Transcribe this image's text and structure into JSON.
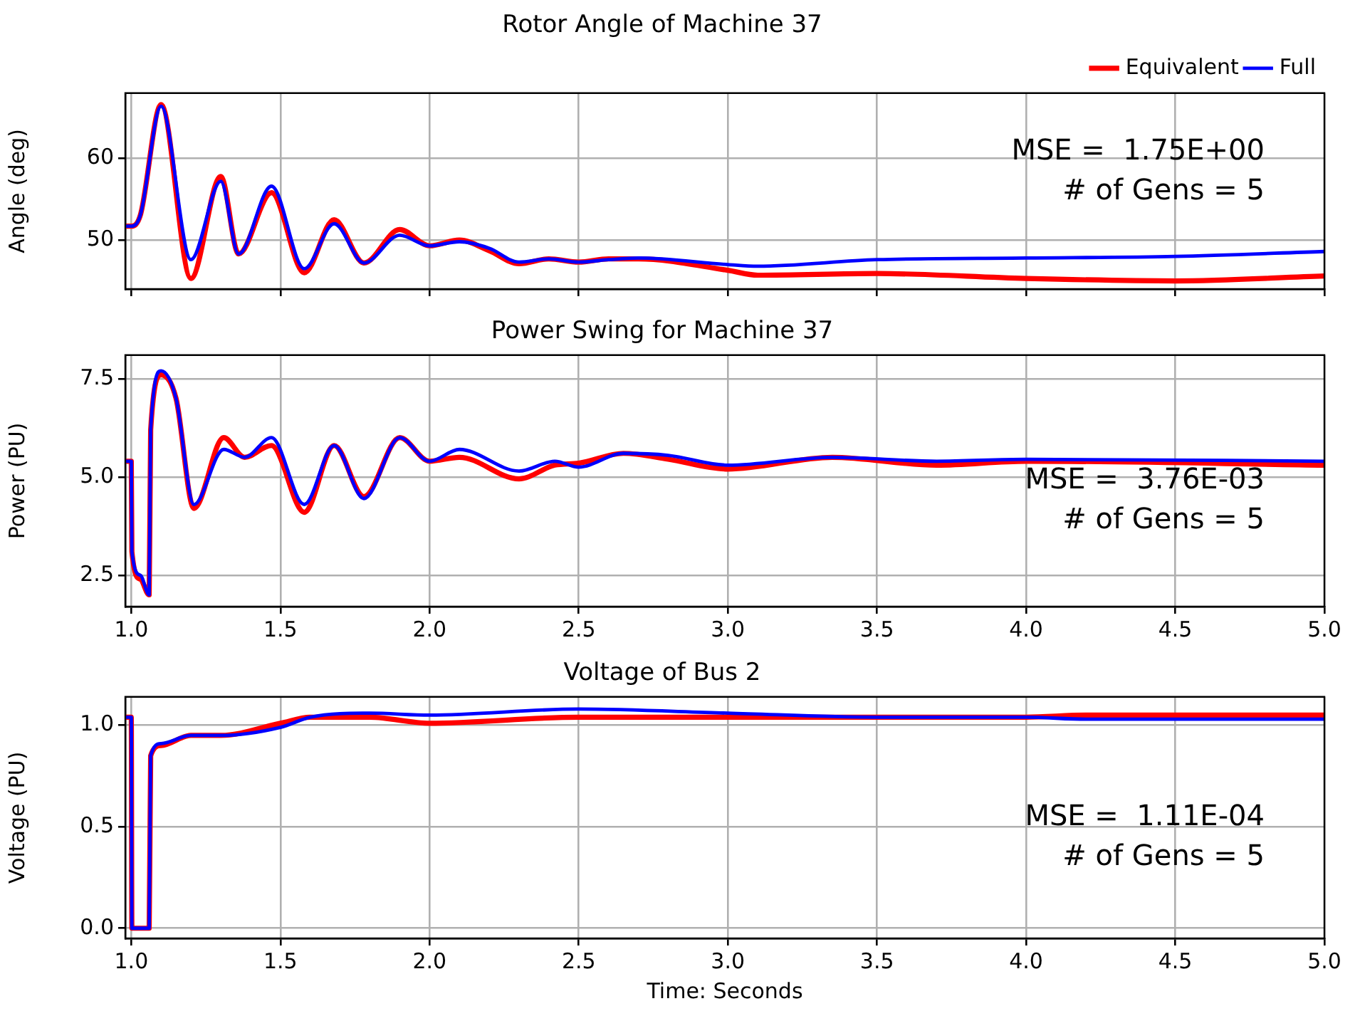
{
  "chart_data": [
    {
      "type": "line",
      "title": "Rotor Angle of Machine 37",
      "ylabel": "Angle (deg)",
      "annotations": [
        "MSE =  1.75E+00",
        "# of Gens = 5"
      ],
      "x": [
        0.98,
        1.0,
        1.03,
        1.1,
        1.2,
        1.3,
        1.36,
        1.47,
        1.58,
        1.68,
        1.78,
        1.9,
        2.0,
        2.1,
        2.2,
        2.3,
        2.4,
        2.5,
        2.6,
        2.7,
        3.0,
        3.1,
        3.5,
        4.0,
        4.5,
        5.0
      ],
      "series": [
        {
          "name": "Equivalent",
          "color": "#ff0000",
          "values": [
            51.7,
            51.7,
            53,
            66.6,
            45.3,
            57.8,
            48.3,
            55.8,
            46.0,
            52.5,
            47.2,
            51.3,
            49.3,
            50.0,
            48.7,
            47.1,
            47.7,
            47.3,
            47.7,
            47.7,
            46.3,
            45.7,
            45.9,
            45.3,
            45.0,
            45.6
          ]
        },
        {
          "name": "Full",
          "color": "#0000ff",
          "values": [
            51.7,
            51.7,
            53,
            66.4,
            47.6,
            57.2,
            48.3,
            56.6,
            46.5,
            52.0,
            47.2,
            50.6,
            49.3,
            49.8,
            49.0,
            47.3,
            47.7,
            47.3,
            47.6,
            47.8,
            47.0,
            46.8,
            47.6,
            47.8,
            48.0,
            48.6
          ]
        }
      ],
      "xlim": [
        0.98,
        5.0
      ],
      "xticks": [
        {
          "value": 1,
          "label": null
        },
        {
          "value": 1.5,
          "label": null
        },
        {
          "value": 2,
          "label": null
        },
        {
          "value": 2.5,
          "label": null
        },
        {
          "value": 3,
          "label": null
        },
        {
          "value": 3.5,
          "label": null
        },
        {
          "value": 4,
          "label": null
        },
        {
          "value": 4.5,
          "label": null
        },
        {
          "value": 5,
          "label": null
        }
      ],
      "ylim": [
        44,
        68
      ],
      "yticks": [
        50,
        60
      ],
      "tick_labels": "y",
      "grid": true,
      "legend": "top right",
      "line_style": "solid",
      "marker": "none"
    },
    {
      "type": "line",
      "title": "Power Swing for Machine 37",
      "ylabel": "Power (PU)",
      "annotations": [
        "MSE =  3.76E-03",
        "# of Gens = 5"
      ],
      "x": [
        0.98,
        1.0,
        1.002,
        1.03,
        1.06,
        1.065,
        1.1,
        1.15,
        1.21,
        1.31,
        1.38,
        1.47,
        1.58,
        1.68,
        1.78,
        1.9,
        2.0,
        2.1,
        2.3,
        2.42,
        2.5,
        2.65,
        2.8,
        3.0,
        3.35,
        3.7,
        4.0,
        5.0
      ],
      "series": [
        {
          "color": "#ff0000",
          "values": [
            5.4,
            5.4,
            3.1,
            2.4,
            2.0,
            6.2,
            7.6,
            7.0,
            4.2,
            6.0,
            5.5,
            5.8,
            4.1,
            5.8,
            4.5,
            6.0,
            5.4,
            5.5,
            4.95,
            5.3,
            5.35,
            5.6,
            5.45,
            5.2,
            5.5,
            5.3,
            5.4,
            5.3
          ]
        },
        {
          "color": "#0000ff",
          "values": [
            5.4,
            5.4,
            3.1,
            2.5,
            2.0,
            6.2,
            7.7,
            7.0,
            4.3,
            5.7,
            5.5,
            6.0,
            4.3,
            5.8,
            4.45,
            6.0,
            5.4,
            5.7,
            5.15,
            5.4,
            5.25,
            5.6,
            5.55,
            5.3,
            5.5,
            5.4,
            5.45,
            5.4
          ]
        }
      ],
      "xlim": [
        0.98,
        5.0
      ],
      "xticks": [
        {
          "value": 1,
          "label": "1.0"
        },
        1.5,
        {
          "value": 2,
          "label": "2.0"
        },
        2.5,
        {
          "value": 3,
          "label": "3.0"
        },
        3.5,
        {
          "value": 4,
          "label": "4.0"
        },
        4.5,
        {
          "value": 5,
          "label": "5.0"
        }
      ],
      "ylim": [
        1.7,
        8.1
      ],
      "yticks": [
        2.5,
        {
          "value": 5,
          "label": "5.0"
        },
        7.5
      ],
      "grid": true,
      "line_style": "solid",
      "marker": "none"
    },
    {
      "type": "line",
      "title": "Voltage of Bus 2",
      "xlabel": "Time: Seconds",
      "ylabel": "Voltage (PU)",
      "annotations": [
        "MSE =  1.11E-04",
        "# of Gens = 5"
      ],
      "x": [
        0.98,
        1.0,
        1.002,
        1.06,
        1.065,
        1.1,
        1.2,
        1.3,
        1.5,
        1.6,
        1.8,
        2.0,
        2.5,
        3.0,
        3.5,
        4.0,
        4.2,
        5.0
      ],
      "series": [
        {
          "color": "#ff0000",
          "values": [
            1.04,
            1.04,
            0,
            0,
            0.85,
            0.9,
            0.95,
            0.95,
            1.01,
            1.04,
            1.04,
            1.01,
            1.04,
            1.04,
            1.04,
            1.04,
            1.05,
            1.05
          ]
        },
        {
          "color": "#0000ff",
          "values": [
            1.04,
            1.04,
            0,
            0,
            0.85,
            0.91,
            0.95,
            0.95,
            0.99,
            1.04,
            1.06,
            1.05,
            1.08,
            1.06,
            1.04,
            1.04,
            1.03,
            1.03
          ]
        }
      ],
      "xlim": [
        0.98,
        5.0
      ],
      "xticks": [
        {
          "value": 1,
          "label": "1.0"
        },
        1.5,
        {
          "value": 2,
          "label": "2.0"
        },
        2.5,
        {
          "value": 3,
          "label": "3.0"
        },
        3.5,
        {
          "value": 4,
          "label": "4.0"
        },
        4.5,
        {
          "value": 5,
          "label": "5.0"
        }
      ],
      "ylim": [
        -0.05,
        1.14
      ],
      "yticks": [
        {
          "value": 0,
          "label": "0.0"
        },
        0.5,
        {
          "value": 1,
          "label": "1.0"
        }
      ],
      "grid": true,
      "line_style": "solid",
      "marker": "none"
    }
  ]
}
